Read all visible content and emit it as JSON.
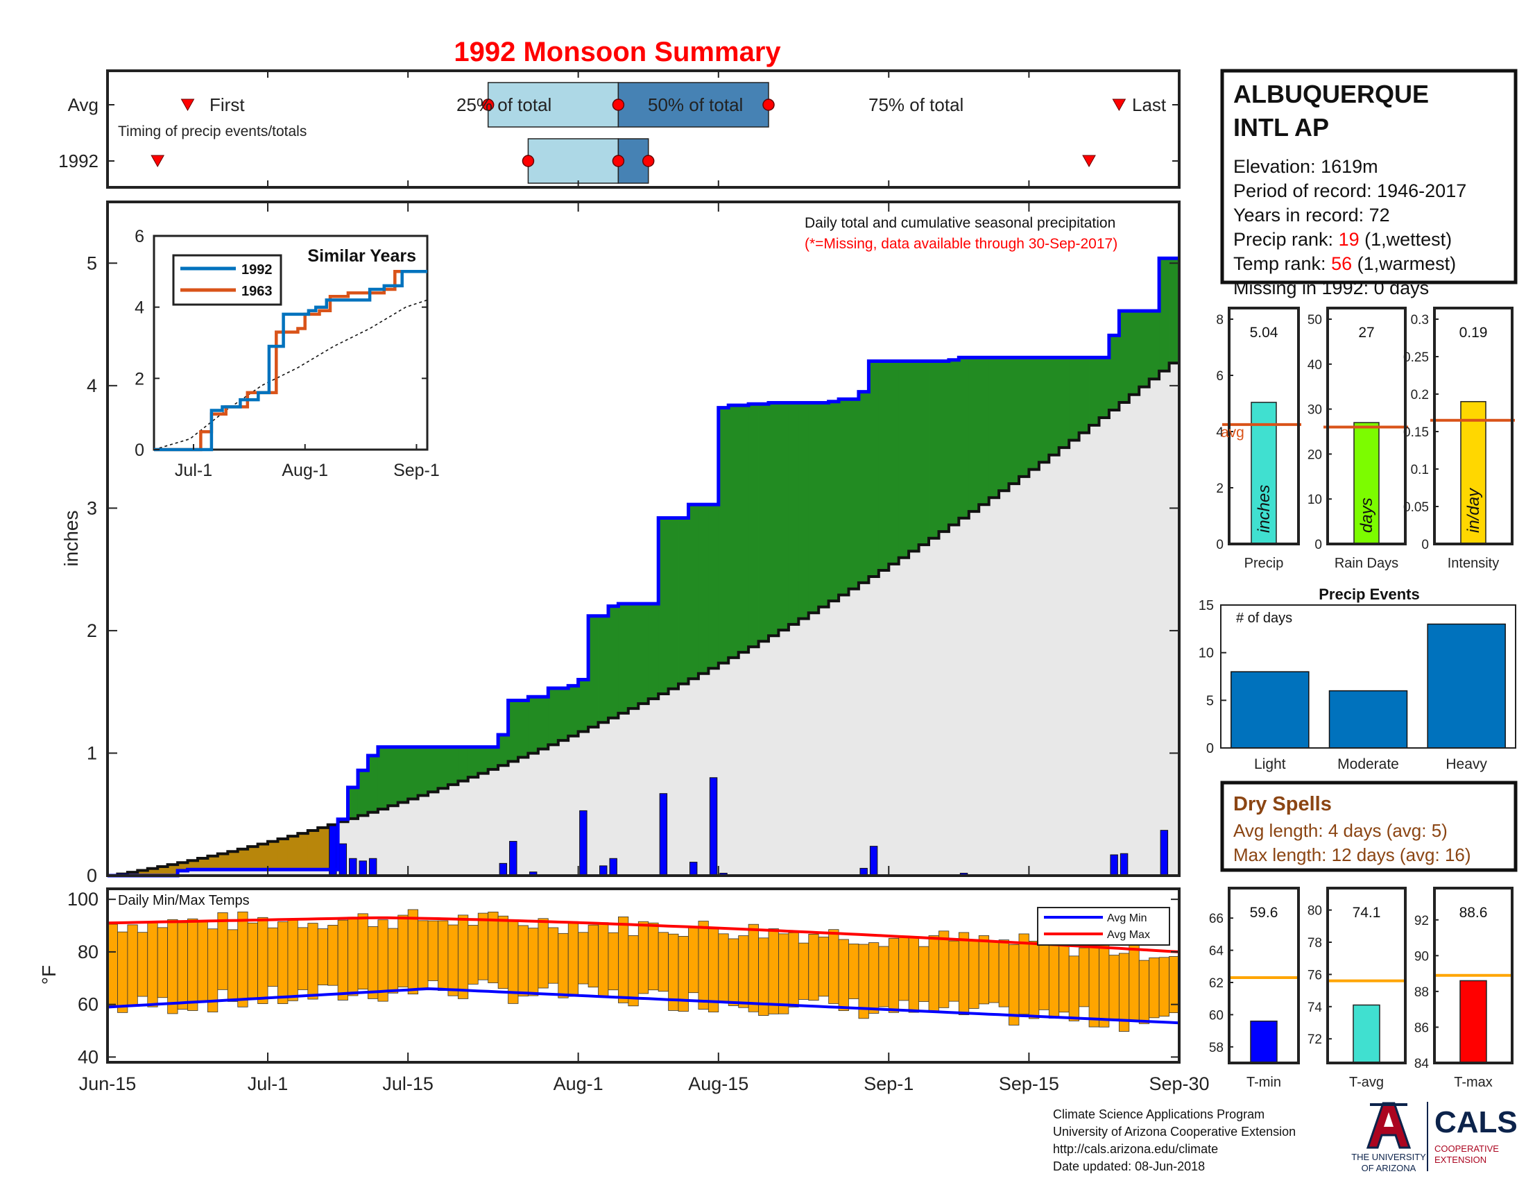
{
  "title": "1992 Monsoon Summary",
  "colors": {
    "title": "#ff0000",
    "bar_light": "#add8e6",
    "bar_dark": "#4682b4",
    "marker": "#ff0000",
    "cum_above": "#228b22",
    "cum_below": "#b8860b",
    "cum_fill": "#e8e8e8",
    "daily_bar": "#0000ff",
    "temp_bar": "#ffa500",
    "avg_min": "#0000ff",
    "avg_max": "#ff0000",
    "series_1992": "#0072bd",
    "series_1963": "#d95319",
    "precip_bar": "#40e0d0",
    "raindays_bar": "#7cfc00",
    "intensity_bar": "#ffd700",
    "avg_line": "#d95319",
    "events_bar": "#0072bd",
    "tmin_bar": "#0000ff",
    "tavg_bar": "#40e0d0",
    "tmax_bar": "#ff0000",
    "temp_avg_line": "#ffa500",
    "dry_spell_text": "#8b4513",
    "ua_red": "#ab0520",
    "ua_blue": "#0c234b"
  },
  "timing": {
    "row_labels": [
      "Avg",
      "1992"
    ],
    "caption": "Timing of precip events/totals",
    "avg_first_label": "First",
    "avg_last_label": "Last",
    "labels_25": "25% of total",
    "labels_50": "50% of total",
    "labels_75": "75% of total"
  },
  "main_chart": {
    "ylabel": "inches",
    "yticks": [
      "0",
      "1",
      "2",
      "3",
      "4",
      "5"
    ],
    "xticks": [
      "Jun-15",
      "Jul-1",
      "Jul-15",
      "Aug-1",
      "Aug-15",
      "Sep-1",
      "Sep-15",
      "Sep-30"
    ],
    "annotation_line1": "Daily total and cumulative seasonal precipitation",
    "annotation_line2": "(*=Missing, data available through 30-Sep-2017)"
  },
  "similar_years": {
    "title": "Similar Years",
    "legend": [
      "1992",
      "1963"
    ],
    "yticks": [
      "0",
      "2",
      "4",
      "6"
    ],
    "xticks": [
      "Jul-1",
      "Aug-1",
      "Sep-1"
    ]
  },
  "temps_chart": {
    "title": "Daily Min/Max Temps",
    "ylabel": "°F",
    "yticks": [
      "40",
      "60",
      "80",
      "100"
    ],
    "legend": [
      "Avg Min",
      "Avg Max"
    ]
  },
  "station": {
    "name_line1": "ALBUQUERQUE",
    "name_line2": "INTL AP",
    "elevation": "Elevation: 1619m",
    "period": "Period of record: 1946-2017",
    "years": "Years in record: 72",
    "precip_rank_label": "Precip rank:",
    "precip_rank_value": "19",
    "precip_rank_suffix": "(1,wettest)",
    "temp_rank_label": "Temp rank:",
    "temp_rank_value": "56",
    "temp_rank_suffix": "(1,warmest)",
    "missing": "Missing in 1992: 0 days"
  },
  "mini_panels": [
    {
      "label": "Precip",
      "value_text": "5.04",
      "unit": "inches",
      "avg_text": "avg",
      "yticks": [
        "0",
        "2",
        "4",
        "6",
        "8"
      ]
    },
    {
      "label": "Rain Days",
      "value_text": "27",
      "unit": "days",
      "yticks": [
        "0",
        "10",
        "20",
        "30",
        "40",
        "50"
      ]
    },
    {
      "label": "Intensity",
      "value_text": "0.19",
      "unit": "in/day",
      "yticks": [
        "0",
        "0.05",
        "0.1",
        "0.15",
        "0.2",
        "0.25",
        "0.3"
      ]
    }
  ],
  "precip_events": {
    "title": "Precip Events",
    "ylabel_inside": "# of days",
    "yticks": [
      "0",
      "5",
      "10",
      "15"
    ]
  },
  "dry_spells": {
    "title": "Dry Spells",
    "avg_length": "Avg length: 4 days (avg: 5)",
    "max_length": "Max length: 12 days (avg: 16)"
  },
  "temp_panels": [
    {
      "label": "T-min",
      "value_text": "59.6",
      "yticks": [
        "58",
        "60",
        "62",
        "64",
        "66"
      ]
    },
    {
      "label": "T-avg",
      "value_text": "74.1",
      "yticks": [
        "72",
        "74",
        "76",
        "78",
        "80"
      ]
    },
    {
      "label": "T-max",
      "value_text": "88.6",
      "yticks": [
        "84",
        "86",
        "88",
        "90",
        "92"
      ]
    }
  ],
  "footer": {
    "line1": "Climate Science Applications Program",
    "line2": "University of Arizona Cooperative Extension",
    "line3": "http://cals.arizona.edu/climate",
    "line4": "Date updated: 08-Jun-2018",
    "ua_line1": "THE UNIVERSITY",
    "ua_line2": "OF ARIZONA",
    "cals": "CALS",
    "cals_sub1": "COOPERATIVE",
    "cals_sub2": "EXTENSION"
  },
  "chart_data": [
    {
      "type": "bar",
      "name": "timing",
      "x_range": [
        "Jun-15",
        "Sep-30"
      ],
      "avg": {
        "first": "Jun-23",
        "p25": "Jul-23",
        "p50": "Aug-5",
        "p75": "Aug-20",
        "last": "Sep-24"
      },
      "y1992": {
        "first": "Jun-20",
        "p25": "Jul-27",
        "p50": "Aug-5",
        "p75": "Aug-8",
        "last": "Sep-21"
      }
    },
    {
      "type": "area",
      "name": "cumulative_precip",
      "ylabel": "inches",
      "ylim": [
        0,
        5.5
      ],
      "cum_points": [
        {
          "day": 0,
          "v": 0.0
        },
        {
          "day": 7,
          "v": 0.04
        },
        {
          "day": 8,
          "v": 0.05
        },
        {
          "day": 22,
          "v": 0.05
        },
        {
          "day": 23,
          "v": 0.46
        },
        {
          "day": 24,
          "v": 0.72
        },
        {
          "day": 25,
          "v": 0.86
        },
        {
          "day": 26,
          "v": 0.98
        },
        {
          "day": 27,
          "v": 1.05
        },
        {
          "day": 38,
          "v": 1.05
        },
        {
          "day": 39,
          "v": 1.15
        },
        {
          "day": 40,
          "v": 1.43
        },
        {
          "day": 42,
          "v": 1.46
        },
        {
          "day": 44,
          "v": 1.53
        },
        {
          "day": 46,
          "v": 1.55
        },
        {
          "day": 47,
          "v": 1.6
        },
        {
          "day": 48,
          "v": 2.12
        },
        {
          "day": 50,
          "v": 2.2
        },
        {
          "day": 51,
          "v": 2.22
        },
        {
          "day": 54,
          "v": 2.22
        },
        {
          "day": 55,
          "v": 2.92
        },
        {
          "day": 57,
          "v": 2.92
        },
        {
          "day": 58,
          "v": 3.03
        },
        {
          "day": 60,
          "v": 3.03
        },
        {
          "day": 61,
          "v": 3.82
        },
        {
          "day": 62,
          "v": 3.84
        },
        {
          "day": 64,
          "v": 3.85
        },
        {
          "day": 66,
          "v": 3.86
        },
        {
          "day": 72,
          "v": 3.87
        },
        {
          "day": 73,
          "v": 3.89
        },
        {
          "day": 75,
          "v": 3.95
        },
        {
          "day": 76,
          "v": 4.2
        },
        {
          "day": 84,
          "v": 4.21
        },
        {
          "day": 85,
          "v": 4.23
        },
        {
          "day": 99,
          "v": 4.23
        },
        {
          "day": 100,
          "v": 4.41
        },
        {
          "day": 101,
          "v": 4.61
        },
        {
          "day": 104,
          "v": 4.61
        },
        {
          "day": 105,
          "v": 5.04
        },
        {
          "day": 107,
          "v": 5.04
        }
      ],
      "avg_cum_end": 4.25,
      "daily_bars": [
        {
          "day": 22,
          "v": 0.41
        },
        {
          "day": 23,
          "v": 0.26
        },
        {
          "day": 24,
          "v": 0.14
        },
        {
          "day": 25,
          "v": 0.12
        },
        {
          "day": 26,
          "v": 0.14
        },
        {
          "day": 39,
          "v": 0.1
        },
        {
          "day": 40,
          "v": 0.28
        },
        {
          "day": 42,
          "v": 0.03
        },
        {
          "day": 47,
          "v": 0.53
        },
        {
          "day": 49,
          "v": 0.08
        },
        {
          "day": 50,
          "v": 0.14
        },
        {
          "day": 55,
          "v": 0.67
        },
        {
          "day": 58,
          "v": 0.11
        },
        {
          "day": 60,
          "v": 0.8
        },
        {
          "day": 61,
          "v": 0.02
        },
        {
          "day": 75,
          "v": 0.06
        },
        {
          "day": 76,
          "v": 0.24
        },
        {
          "day": 85,
          "v": 0.02
        },
        {
          "day": 100,
          "v": 0.17
        },
        {
          "day": 101,
          "v": 0.18
        },
        {
          "day": 105,
          "v": 0.37
        }
      ]
    },
    {
      "type": "line",
      "name": "similar_years",
      "title": "Similar Years",
      "ylim": [
        0,
        6
      ],
      "series": [
        {
          "name": "1992",
          "points": [
            [
              0,
              0
            ],
            [
              14,
              0
            ],
            [
              16,
              1.1
            ],
            [
              19,
              1.2
            ],
            [
              24,
              1.4
            ],
            [
              29,
              1.6
            ],
            [
              32,
              2.9
            ],
            [
              35,
              2.9
            ],
            [
              36,
              3.8
            ],
            [
              40,
              3.8
            ],
            [
              43,
              3.9
            ],
            [
              45,
              4.0
            ],
            [
              48,
              4.2
            ],
            [
              58,
              4.2
            ],
            [
              60,
              4.5
            ],
            [
              64,
              4.6
            ],
            [
              66,
              4.6
            ],
            [
              69,
              5.0
            ],
            [
              76,
              5.0
            ]
          ]
        },
        {
          "name": "1963",
          "points": [
            [
              0,
              0
            ],
            [
              11,
              0
            ],
            [
              13,
              0.5
            ],
            [
              16,
              1.0
            ],
            [
              20,
              1.2
            ],
            [
              26,
              1.6
            ],
            [
              29,
              1.6
            ],
            [
              34,
              3.3
            ],
            [
              40,
              3.4
            ],
            [
              42,
              3.8
            ],
            [
              46,
              3.9
            ],
            [
              49,
              4.3
            ],
            [
              54,
              4.4
            ],
            [
              64,
              4.5
            ],
            [
              67,
              5.0
            ],
            [
              76,
              5.0
            ]
          ]
        }
      ],
      "avg_points": [
        [
          0,
          0
        ],
        [
          10,
          0.3
        ],
        [
          20,
          1.1
        ],
        [
          30,
          1.8
        ],
        [
          40,
          2.3
        ],
        [
          50,
          2.9
        ],
        [
          60,
          3.4
        ],
        [
          70,
          4.0
        ],
        [
          76,
          4.2
        ]
      ]
    },
    {
      "type": "bar",
      "name": "daily_temps",
      "ylim": [
        40,
        100
      ],
      "avg_min": {
        "start": 59,
        "peak": 66,
        "end": 53
      },
      "avg_max": {
        "start": 91,
        "peak": 93,
        "end": 80
      }
    },
    {
      "type": "bar",
      "name": "precip_total",
      "value": 5.04,
      "avg": 4.25,
      "ylim": [
        0,
        8
      ]
    },
    {
      "type": "bar",
      "name": "rain_days",
      "value": 27,
      "avg": 26,
      "ylim": [
        0,
        50
      ]
    },
    {
      "type": "bar",
      "name": "intensity",
      "value": 0.19,
      "avg": 0.165,
      "ylim": [
        0,
        0.3
      ]
    },
    {
      "type": "bar",
      "name": "precip_events",
      "title": "Precip Events",
      "categories": [
        "Light",
        "Moderate",
        "Heavy"
      ],
      "values": [
        8,
        6,
        13
      ],
      "ylim": [
        0,
        15
      ]
    },
    {
      "type": "bar",
      "name": "t_min",
      "value": 59.6,
      "avg": 62.3,
      "ylim": [
        57,
        67
      ]
    },
    {
      "type": "bar",
      "name": "t_avg",
      "value": 74.1,
      "avg": 75.6,
      "ylim": [
        70.5,
        80.5
      ]
    },
    {
      "type": "bar",
      "name": "t_max",
      "value": 88.6,
      "avg": 88.9,
      "ylim": [
        84,
        93
      ]
    }
  ]
}
